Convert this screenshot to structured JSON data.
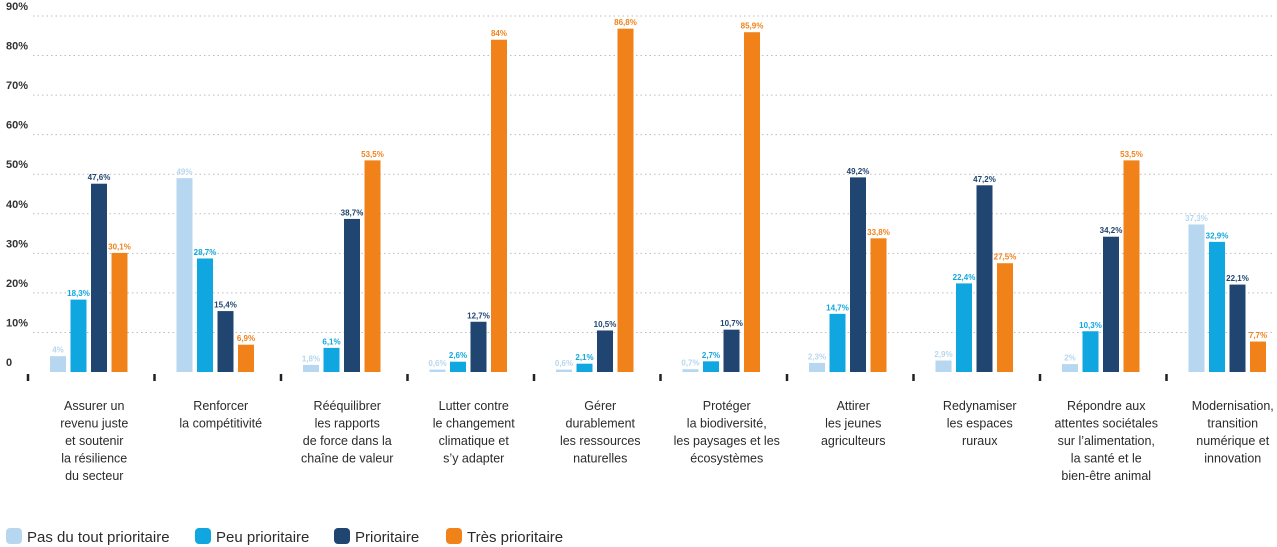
{
  "chart_data": {
    "type": "bar",
    "ylim": [
      0,
      90
    ],
    "yticks": [
      0,
      10,
      20,
      30,
      40,
      50,
      60,
      70,
      80,
      90
    ],
    "ytick_labels": [
      "0",
      "10%",
      "20%",
      "30%",
      "40%",
      "50%",
      "60%",
      "70%",
      "80%",
      "90%"
    ],
    "grid": "dotted horizontal",
    "legend_position": "bottom-left",
    "categories": [
      [
        "Assurer un",
        "revenu juste",
        "et soutenir",
        "la résilience",
        "du secteur"
      ],
      [
        "Renforcer",
        "la compétitivité"
      ],
      [
        "Rééquilibrer",
        "les rapports",
        "de force dans la",
        "chaîne de valeur"
      ],
      [
        "Lutter contre",
        "le changement",
        "climatique et",
        "s’y adapter"
      ],
      [
        "Gérer",
        "durablement",
        "les ressources",
        "naturelles"
      ],
      [
        "Protéger",
        "la biodiversité,",
        "les paysages et les",
        "écosystèmes"
      ],
      [
        "Attirer",
        "les jeunes",
        "agriculteurs"
      ],
      [
        "Redynamiser",
        "les espaces",
        "ruraux"
      ],
      [
        "Répondre aux",
        "attentes sociétales",
        "sur l’alimentation,",
        "la santé et le",
        "bien-être animal"
      ],
      [
        "Modernisation,",
        "transition",
        "numérique et",
        "innovation"
      ]
    ],
    "series": [
      {
        "name": "Pas du tout prioritaire",
        "color": "#b6d7ef",
        "values": [
          4,
          49,
          1.8,
          0.6,
          0.6,
          0.7,
          2.3,
          2.9,
          2,
          37.3
        ],
        "labels": [
          "4%",
          "49%",
          "1,8%",
          "0,6%",
          "0,6%",
          "0,7%",
          "2,3%",
          "2,9%",
          "2%",
          "37,3%"
        ]
      },
      {
        "name": "Peu prioritaire",
        "color": "#10a7e0",
        "values": [
          18.3,
          28.7,
          6.1,
          2.6,
          2.1,
          2.7,
          14.7,
          22.4,
          10.3,
          32.9
        ],
        "labels": [
          "18,3%",
          "28,7%",
          "6,1%",
          "2,6%",
          "2,1%",
          "2,7%",
          "14,7%",
          "22,4%",
          "10,3%",
          "32,9%"
        ]
      },
      {
        "name": "Prioritaire",
        "color": "#1f4570",
        "values": [
          47.6,
          15.4,
          38.7,
          12.7,
          10.5,
          10.7,
          49.2,
          47.2,
          34.2,
          22.1
        ],
        "labels": [
          "47,6%",
          "15,4%",
          "38,7%",
          "12,7%",
          "10,5%",
          "10,7%",
          "49,2%",
          "47,2%",
          "34,2%",
          "22,1%"
        ]
      },
      {
        "name": "Très prioritaire",
        "color": "#f08219",
        "values": [
          30.1,
          6.9,
          53.5,
          84,
          86.8,
          85.9,
          33.8,
          27.5,
          53.5,
          7.7
        ],
        "labels": [
          "30,1%",
          "6,9%",
          "53,5%",
          "84%",
          "86,8%",
          "85,9%",
          "33,8%",
          "27,5%",
          "53,5%",
          "7,7%"
        ]
      }
    ]
  }
}
